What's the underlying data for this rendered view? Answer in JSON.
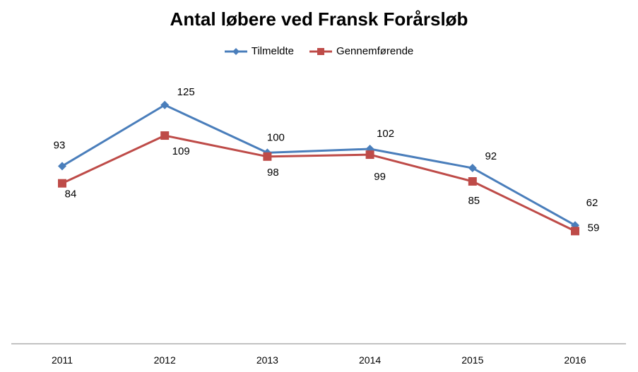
{
  "chart_data": {
    "type": "line",
    "title": "Antal løbere ved Fransk Forårsløb",
    "categories": [
      "2011",
      "2012",
      "2013",
      "2014",
      "2015",
      "2016"
    ],
    "series": [
      {
        "name": "Tilmeldte",
        "values": [
          93,
          125,
          100,
          102,
          92,
          62
        ],
        "color": "#4a7ebb",
        "marker": "diamond"
      },
      {
        "name": "Gennemførende",
        "values": [
          84,
          109,
          98,
          99,
          85,
          59
        ],
        "color": "#be4b48",
        "marker": "square"
      }
    ],
    "ylim": [
      0,
      180
    ],
    "grid": false,
    "legend_position": "top-center",
    "xlabel": "",
    "ylabel": ""
  }
}
